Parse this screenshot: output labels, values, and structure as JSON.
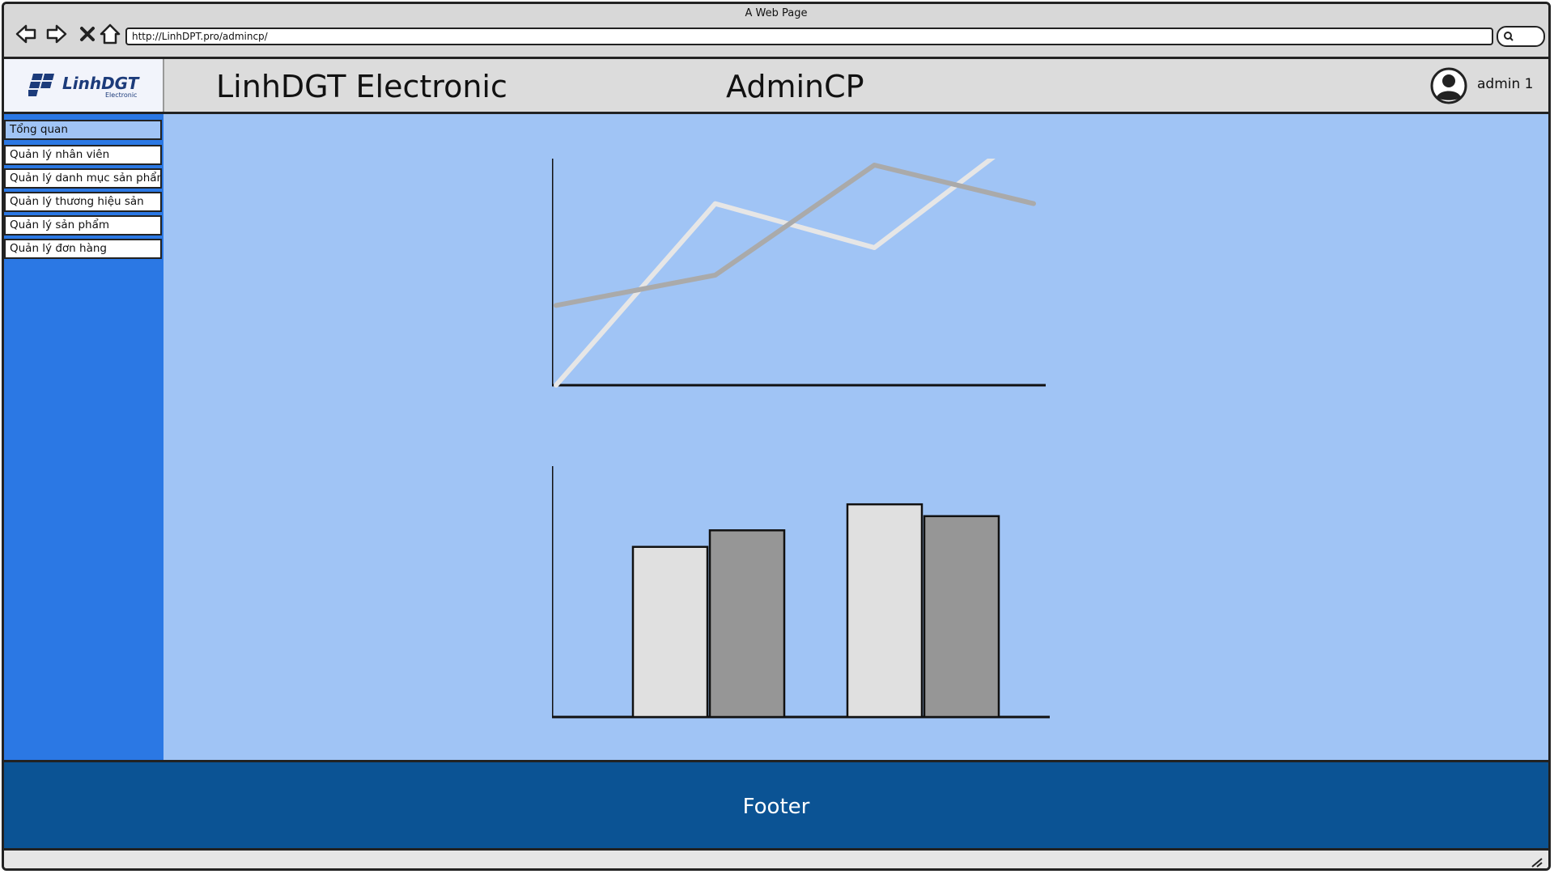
{
  "browser": {
    "window_title": "A Web Page",
    "url": "http://LinhDPT.pro/admincp/"
  },
  "header": {
    "logo_text": "LinhDGT",
    "logo_subtext": "Electronic",
    "site_title": "LinhDGT Electronic",
    "section_title": "AdminCP",
    "username": "admin 1"
  },
  "sidebar": {
    "items": [
      {
        "label": "Tổng quan",
        "active": true
      },
      {
        "label": "Quản lý nhân viên",
        "active": false
      },
      {
        "label": "Quản lý danh mục sản phẩm",
        "active": false
      },
      {
        "label": "Quản lý thương hiệu sản",
        "active": false
      },
      {
        "label": "Quản lý sản phẩm",
        "active": false
      },
      {
        "label": "Quản lý đơn hàng",
        "active": false
      }
    ]
  },
  "colors": {
    "sidebar": "#2b78e4",
    "content": "#a0c4f5",
    "footer": "#0b5394"
  },
  "footer": {
    "text": "Footer"
  },
  "chart_data": [
    {
      "type": "line",
      "x": [
        0,
        1,
        2,
        3
      ],
      "series": [
        {
          "values": [
            0,
            0.66,
            0.5,
            0.94
          ],
          "color": "#e6e6e6"
        },
        {
          "values": [
            0.29,
            0.4,
            0.8,
            0.66
          ],
          "color": "#aaaaaa"
        }
      ],
      "ylim": [
        0,
        1
      ],
      "title": "",
      "xlabel": "",
      "ylabel": ""
    },
    {
      "type": "bar",
      "categories": [
        "",
        ""
      ],
      "series": [
        {
          "values": [
            0.72,
            0.9
          ],
          "color": "#e0e0e0"
        },
        {
          "values": [
            0.79,
            0.85
          ],
          "color": "#969696"
        }
      ],
      "ylim": [
        0,
        1
      ],
      "title": "",
      "xlabel": "",
      "ylabel": ""
    }
  ]
}
